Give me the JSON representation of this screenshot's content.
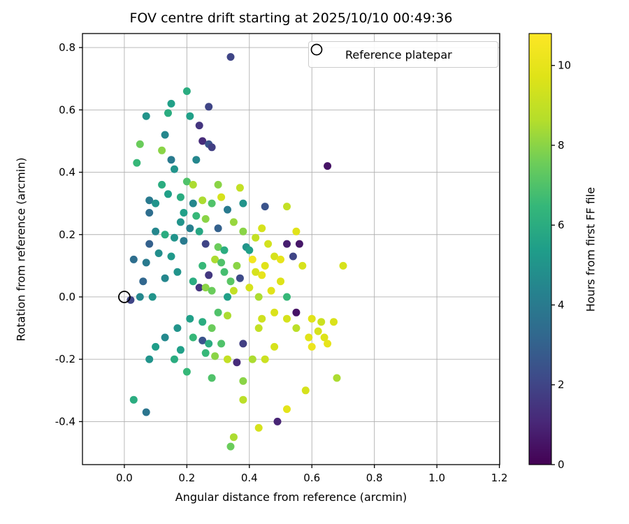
{
  "chart_data": {
    "type": "scatter",
    "title": "FOV centre drift starting at 2025/10/10 00:49:36",
    "xlabel": "Angular distance from reference (arcmin)",
    "ylabel": "Rotation from reference (arcmin)",
    "xlim": [
      -0.134,
      1.201
    ],
    "ylim": [
      -0.538,
      0.845
    ],
    "xticks": {
      "values": [
        0.0,
        0.2,
        0.4,
        0.6,
        0.8,
        1.0,
        1.2
      ],
      "labels": [
        "0.0",
        "0.2",
        "0.4",
        "0.6",
        "0.8",
        "1.0",
        "1.2"
      ]
    },
    "yticks": {
      "values": [
        -0.4,
        -0.2,
        0.0,
        0.2,
        0.4,
        0.6,
        0.8
      ],
      "labels": [
        "-0.4",
        "-0.2",
        "0.0",
        "0.2",
        "0.4",
        "0.6",
        "0.8"
      ]
    },
    "grid": true,
    "legend": {
      "label": "Reference platepar",
      "position": "upper right"
    },
    "colorbar": {
      "label": "Hours from first FF file",
      "min": 0,
      "max": 10.8,
      "tick_values": [
        0,
        2,
        4,
        6,
        8,
        10
      ],
      "tick_labels": [
        "0",
        "2",
        "4",
        "6",
        "8",
        "10"
      ]
    },
    "reference_point": {
      "x": 0.0,
      "y": 0.0
    },
    "points_format": [
      "angular_distance_arcmin",
      "rotation_arcmin",
      "hours_from_first_ff_file"
    ],
    "points": [
      [
        0.34,
        0.77,
        2
      ],
      [
        0.2,
        0.66,
        6
      ],
      [
        0.15,
        0.62,
        5.5
      ],
      [
        0.27,
        0.61,
        2
      ],
      [
        0.07,
        0.58,
        5
      ],
      [
        0.14,
        0.59,
        6
      ],
      [
        0.21,
        0.58,
        5.5
      ],
      [
        0.24,
        0.55,
        1.5
      ],
      [
        0.13,
        0.52,
        4.5
      ],
      [
        0.25,
        0.5,
        1.2
      ],
      [
        0.27,
        0.49,
        2.5
      ],
      [
        0.28,
        0.48,
        1.8
      ],
      [
        0.05,
        0.49,
        7.5
      ],
      [
        0.04,
        0.43,
        6.5
      ],
      [
        0.15,
        0.44,
        4
      ],
      [
        0.16,
        0.41,
        5
      ],
      [
        0.65,
        0.42,
        0.5
      ],
      [
        0.2,
        0.37,
        7
      ],
      [
        0.22,
        0.36,
        8.5
      ],
      [
        0.12,
        0.36,
        6
      ],
      [
        0.3,
        0.36,
        8
      ],
      [
        0.37,
        0.35,
        9
      ],
      [
        0.08,
        0.31,
        4
      ],
      [
        0.1,
        0.3,
        5
      ],
      [
        0.14,
        0.33,
        5.5
      ],
      [
        0.18,
        0.32,
        6
      ],
      [
        0.22,
        0.3,
        4.5
      ],
      [
        0.25,
        0.31,
        8.5
      ],
      [
        0.28,
        0.3,
        7
      ],
      [
        0.31,
        0.32,
        9.5
      ],
      [
        0.33,
        0.28,
        4
      ],
      [
        0.38,
        0.3,
        5
      ],
      [
        0.45,
        0.29,
        2.5
      ],
      [
        0.52,
        0.29,
        9
      ],
      [
        0.19,
        0.27,
        5.5
      ],
      [
        0.23,
        0.26,
        6.5
      ],
      [
        0.26,
        0.25,
        8
      ],
      [
        0.08,
        0.27,
        3.5
      ],
      [
        0.44,
        0.22,
        9.5
      ],
      [
        0.55,
        0.21,
        9.8
      ],
      [
        0.38,
        0.21,
        8
      ],
      [
        0.42,
        0.19,
        9
      ],
      [
        0.1,
        0.21,
        4.5
      ],
      [
        0.13,
        0.2,
        6
      ],
      [
        0.16,
        0.19,
        5
      ],
      [
        0.19,
        0.18,
        4
      ],
      [
        0.08,
        0.17,
        3
      ],
      [
        0.26,
        0.17,
        2
      ],
      [
        0.3,
        0.16,
        7.5
      ],
      [
        0.32,
        0.15,
        6
      ],
      [
        0.39,
        0.16,
        5
      ],
      [
        0.4,
        0.15,
        5.5
      ],
      [
        0.52,
        0.17,
        0.8
      ],
      [
        0.54,
        0.13,
        2
      ],
      [
        0.48,
        0.13,
        9.5
      ],
      [
        0.5,
        0.12,
        10
      ],
      [
        0.57,
        0.1,
        9.5
      ],
      [
        0.45,
        0.1,
        9.8
      ],
      [
        0.7,
        0.1,
        9.5
      ],
      [
        0.03,
        0.12,
        3.5
      ],
      [
        0.07,
        0.11,
        4
      ],
      [
        0.29,
        0.12,
        8.5
      ],
      [
        0.31,
        0.11,
        7
      ],
      [
        0.25,
        0.1,
        6.5
      ],
      [
        0.36,
        0.1,
        8
      ],
      [
        0.42,
        0.08,
        9.5
      ],
      [
        0.44,
        0.07,
        10
      ],
      [
        0.37,
        0.06,
        2.2
      ],
      [
        0.17,
        0.08,
        5
      ],
      [
        0.13,
        0.06,
        4.5
      ],
      [
        0.22,
        0.05,
        6
      ],
      [
        0.24,
        0.03,
        1.5
      ],
      [
        0.26,
        0.03,
        8
      ],
      [
        0.28,
        0.02,
        7.5
      ],
      [
        0.35,
        0.02,
        9
      ],
      [
        0.4,
        0.03,
        9.5
      ],
      [
        0.47,
        0.02,
        9.8
      ],
      [
        0.33,
        0.0,
        5.5
      ],
      [
        0.43,
        0.0,
        8.5
      ],
      [
        0.52,
        0.0,
        6.5
      ],
      [
        0.05,
        0.0,
        4.5
      ],
      [
        0.09,
        0.0,
        5
      ],
      [
        0.02,
        -0.01,
        2
      ],
      [
        0.55,
        -0.05,
        0.5
      ],
      [
        0.3,
        -0.05,
        7
      ],
      [
        0.33,
        -0.06,
        8.5
      ],
      [
        0.52,
        -0.07,
        9.5
      ],
      [
        0.6,
        -0.07,
        9.8
      ],
      [
        0.63,
        -0.08,
        9.2
      ],
      [
        0.67,
        -0.08,
        9.6
      ],
      [
        0.21,
        -0.07,
        5.5
      ],
      [
        0.25,
        -0.08,
        6
      ],
      [
        0.17,
        -0.1,
        5
      ],
      [
        0.28,
        -0.1,
        7.5
      ],
      [
        0.43,
        -0.1,
        9
      ],
      [
        0.55,
        -0.1,
        8.8
      ],
      [
        0.62,
        -0.11,
        9.5
      ],
      [
        0.64,
        -0.13,
        9.7
      ],
      [
        0.65,
        -0.15,
        10
      ],
      [
        0.22,
        -0.13,
        6.5
      ],
      [
        0.25,
        -0.14,
        2.5
      ],
      [
        0.27,
        -0.15,
        6
      ],
      [
        0.31,
        -0.15,
        7
      ],
      [
        0.38,
        -0.15,
        1.8
      ],
      [
        0.48,
        -0.16,
        9.5
      ],
      [
        0.18,
        -0.17,
        5.5
      ],
      [
        0.26,
        -0.18,
        6.5
      ],
      [
        0.29,
        -0.19,
        8
      ],
      [
        0.33,
        -0.2,
        9
      ],
      [
        0.08,
        -0.2,
        5
      ],
      [
        0.16,
        -0.2,
        6
      ],
      [
        0.36,
        -0.21,
        1.2
      ],
      [
        0.41,
        -0.2,
        8.5
      ],
      [
        0.45,
        -0.2,
        9.2
      ],
      [
        0.2,
        -0.24,
        6.5
      ],
      [
        0.28,
        -0.26,
        7
      ],
      [
        0.38,
        -0.27,
        8
      ],
      [
        0.68,
        -0.26,
        8.5
      ],
      [
        0.58,
        -0.3,
        9.5
      ],
      [
        0.03,
        -0.33,
        6
      ],
      [
        0.38,
        -0.33,
        8.8
      ],
      [
        0.07,
        -0.37,
        3.8
      ],
      [
        0.52,
        -0.36,
        9.9
      ],
      [
        0.49,
        -0.4,
        1.0
      ],
      [
        0.43,
        -0.42,
        9.5
      ],
      [
        0.35,
        -0.45,
        8.5
      ],
      [
        0.34,
        -0.48,
        7.5
      ],
      [
        0.12,
        0.47,
        8
      ],
      [
        0.23,
        0.44,
        4.5
      ],
      [
        0.18,
        0.24,
        5
      ],
      [
        0.21,
        0.22,
        4.2
      ],
      [
        0.24,
        0.21,
        5.8
      ],
      [
        0.35,
        0.24,
        8.2
      ],
      [
        0.3,
        0.22,
        3
      ],
      [
        0.46,
        0.17,
        9.4
      ],
      [
        0.56,
        0.17,
        0.6
      ],
      [
        0.11,
        0.14,
        4.8
      ],
      [
        0.15,
        0.13,
        5.2
      ],
      [
        0.48,
        -0.05,
        9.6
      ],
      [
        0.44,
        -0.07,
        9.3
      ],
      [
        0.59,
        -0.13,
        9.8
      ],
      [
        0.6,
        -0.16,
        10.2
      ],
      [
        0.13,
        -0.13,
        4.6
      ],
      [
        0.1,
        -0.16,
        5.4
      ],
      [
        0.32,
        0.08,
        6.8
      ],
      [
        0.34,
        0.05,
        7.2
      ],
      [
        0.5,
        0.05,
        9.7
      ],
      [
        0.27,
        0.07,
        1.6
      ],
      [
        0.06,
        0.05,
        3.2
      ],
      [
        0.41,
        0.12,
        10.4
      ]
    ]
  },
  "colors": {
    "grid": "#b0b0b0",
    "spine": "#000000",
    "background": "#ffffff",
    "marker_edge": "#000000",
    "colormap_name": "viridis",
    "colormap_stops": [
      [
        0.0,
        "#440154"
      ],
      [
        0.1,
        "#482878"
      ],
      [
        0.2,
        "#3e4a89"
      ],
      [
        0.3,
        "#31688e"
      ],
      [
        0.4,
        "#26828e"
      ],
      [
        0.5,
        "#1f9e89"
      ],
      [
        0.6,
        "#35b779"
      ],
      [
        0.7,
        "#6dcd59"
      ],
      [
        0.8,
        "#b5de2b"
      ],
      [
        0.9,
        "#dfe318"
      ],
      [
        1.0,
        "#fde725"
      ]
    ]
  }
}
